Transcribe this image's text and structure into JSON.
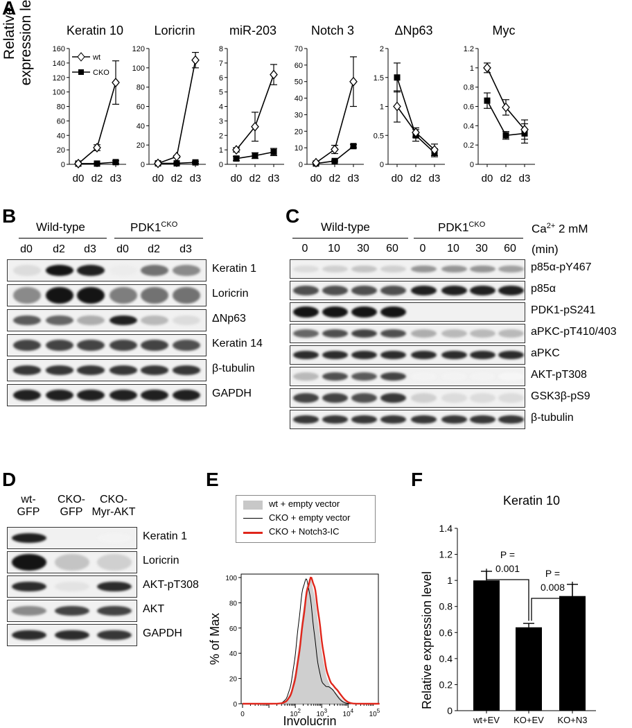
{
  "panels": {
    "A": {
      "letter": "A",
      "ylabel_line1": "Relative",
      "ylabel_line2": "expression level",
      "legend": {
        "wt": "wt",
        "cko": "CKO"
      },
      "charts": [
        {
          "title": "Keratin 10",
          "ylim": [
            0,
            160
          ],
          "yticks": [
            "0",
            "20",
            "40",
            "60",
            "80",
            "100",
            "120",
            "140",
            "160"
          ],
          "tickvals": [
            0,
            20,
            40,
            60,
            80,
            100,
            120,
            140,
            160
          ]
        },
        {
          "title": "Loricrin",
          "ylim": [
            0,
            120
          ],
          "yticks": [
            "0",
            "20",
            "40",
            "60",
            "80",
            "100",
            "120"
          ],
          "tickvals": [
            0,
            20,
            40,
            60,
            80,
            100,
            120
          ]
        },
        {
          "title": "miR-203",
          "ylim": [
            0,
            8
          ],
          "yticks": [
            "0",
            "1",
            "2",
            "3",
            "4",
            "5",
            "6",
            "7",
            "8"
          ],
          "tickvals": [
            0,
            1,
            2,
            3,
            4,
            5,
            6,
            7,
            8
          ]
        },
        {
          "title": "Notch 3",
          "ylim": [
            0,
            70
          ],
          "yticks": [
            "0",
            "10",
            "20",
            "30",
            "40",
            "50",
            "60",
            "70"
          ],
          "tickvals": [
            0,
            10,
            20,
            30,
            40,
            50,
            60,
            70
          ]
        },
        {
          "title": "ΔNp63",
          "ylim": [
            0,
            2
          ],
          "yticks": [
            "0",
            "0.5",
            "1",
            "1.5",
            "2"
          ],
          "tickvals": [
            0,
            0.5,
            1,
            1.5,
            2
          ]
        },
        {
          "title": "Myc",
          "ylim": [
            0,
            1.2
          ],
          "yticks": [
            "0",
            "0.2",
            "0.4",
            "0.6",
            "0.8",
            "1",
            "1.2"
          ],
          "tickvals": [
            0,
            0.2,
            0.4,
            0.6,
            0.8,
            1,
            1.2
          ]
        }
      ],
      "xticks": [
        "d0",
        "d2",
        "d3"
      ]
    },
    "B": {
      "letter": "B",
      "group1": "Wild-type",
      "group2_main": "PDK1",
      "group2_sup": "CKO",
      "lanes": [
        "d0",
        "d2",
        "d3",
        "d0",
        "d2",
        "d3"
      ],
      "rows": [
        "Keratin 1",
        "Loricrin",
        "ΔNp63",
        "Keratin 14",
        "β-tubulin",
        "GAPDH"
      ]
    },
    "C": {
      "letter": "C",
      "group1": "Wild-type",
      "group2_main": "PDK1",
      "group2_sup": "CKO",
      "ca_label": "Ca",
      "ca_sup": "2+",
      "ca_rest": " 2 mM",
      "unit": "(min)",
      "lanes": [
        "0",
        "10",
        "30",
        "60",
        "0",
        "10",
        "30",
        "60"
      ],
      "rows": [
        "p85α-pY467",
        "p85α",
        "PDK1-pS241",
        "aPKC-pT410/403",
        "aPKC",
        "AKT-pT308",
        "GSK3β-pS9",
        "β-tubulin"
      ]
    },
    "D": {
      "letter": "D",
      "lanes": [
        {
          "l1": "wt-",
          "l2": "GFP"
        },
        {
          "l1": "CKO-",
          "l2": "GFP"
        },
        {
          "l1": "CKO-",
          "l2": "Myr-AKT"
        }
      ],
      "rows": [
        "Keratin 1",
        "Loricrin",
        "AKT-pT308",
        "AKT",
        "GAPDH"
      ]
    },
    "E": {
      "letter": "E",
      "legend": [
        "wt + empty vector",
        "CKO + empty vector",
        "CKO + Notch3-IC"
      ],
      "ylabel": "% of Max",
      "xlabel": "Involucrin",
      "yticks": [
        "0",
        "20",
        "40",
        "60",
        "80",
        "100"
      ],
      "xticks": [
        {
          "b": "0",
          "e": ""
        },
        {
          "b": "10",
          "e": "2"
        },
        {
          "b": "10",
          "e": "3"
        },
        {
          "b": "10",
          "e": "4"
        },
        {
          "b": "10",
          "e": "5"
        }
      ]
    },
    "F": {
      "letter": "F",
      "title": "Keratin 10",
      "ylabel": "Relative expression level",
      "p1_line1": "P =",
      "p1_line2": "0.001",
      "p2_line1": "P =",
      "p2_line2": "0.008",
      "yticks": [
        "0",
        "0.2",
        "0.4",
        "0.6",
        "0.8",
        "1",
        "1.2",
        "1.4"
      ]
    }
  },
  "chart_data": [
    {
      "type": "line",
      "title": "Keratin 10",
      "x": [
        "d0",
        "d2",
        "d3"
      ],
      "series": [
        {
          "name": "wt",
          "values": [
            1,
            23,
            113
          ],
          "errors": [
            1,
            4,
            30
          ]
        },
        {
          "name": "CKO",
          "values": [
            1,
            1,
            3
          ],
          "errors": [
            0.5,
            0.5,
            2
          ]
        }
      ],
      "ylim": [
        0,
        160
      ]
    },
    {
      "type": "line",
      "title": "Loricrin",
      "x": [
        "d0",
        "d2",
        "d3"
      ],
      "series": [
        {
          "name": "wt",
          "values": [
            1,
            8,
            108
          ],
          "errors": [
            0.5,
            1,
            8
          ]
        },
        {
          "name": "CKO",
          "values": [
            1,
            1,
            2
          ],
          "errors": [
            0.5,
            0.5,
            1
          ]
        }
      ],
      "ylim": [
        0,
        120
      ]
    },
    {
      "type": "line",
      "title": "miR-203",
      "x": [
        "d0",
        "d2",
        "d3"
      ],
      "series": [
        {
          "name": "wt",
          "values": [
            1,
            2.6,
            6.2
          ],
          "errors": [
            0.15,
            1,
            0.7
          ]
        },
        {
          "name": "CKO",
          "values": [
            0.4,
            0.6,
            0.85
          ],
          "errors": [
            0.15,
            0.2,
            0.25
          ]
        }
      ],
      "ylim": [
        0,
        8
      ]
    },
    {
      "type": "line",
      "title": "Notch 3",
      "x": [
        "d0",
        "d2",
        "d3"
      ],
      "series": [
        {
          "name": "wt",
          "values": [
            1,
            9,
            50
          ],
          "errors": [
            0.5,
            2.5,
            15
          ]
        },
        {
          "name": "CKO",
          "values": [
            0.5,
            2,
            11
          ],
          "errors": [
            0.5,
            0.5,
            1
          ]
        }
      ],
      "ylim": [
        0,
        70
      ]
    },
    {
      "type": "line",
      "title": "ΔNp63",
      "x": [
        "d0",
        "d2",
        "d3"
      ],
      "series": [
        {
          "name": "wt",
          "values": [
            1,
            0.55,
            0.25
          ],
          "errors": [
            0.27,
            0.08,
            0.1
          ]
        },
        {
          "name": "CKO",
          "values": [
            1.5,
            0.5,
            0.2
          ],
          "errors": [
            0.25,
            0.1,
            0.07
          ]
        }
      ],
      "ylim": [
        0,
        2
      ]
    },
    {
      "type": "line",
      "title": "Myc",
      "x": [
        "d0",
        "d2",
        "d3"
      ],
      "series": [
        {
          "name": "wt",
          "values": [
            1,
            0.59,
            0.36
          ],
          "errors": [
            0.05,
            0.08,
            0.1
          ]
        },
        {
          "name": "CKO",
          "values": [
            0.66,
            0.3,
            0.32
          ],
          "errors": [
            0.08,
            0.04,
            0.1
          ]
        }
      ],
      "ylim": [
        0,
        1.2
      ]
    },
    {
      "type": "bar",
      "title": "Keratin 10",
      "categories": [
        "wt+EV",
        "KO+EV",
        "KO+N3"
      ],
      "values": [
        1.0,
        0.64,
        0.88
      ],
      "errors": [
        0.07,
        0.03,
        0.09
      ],
      "ylabel": "Relative expression level",
      "ylim": [
        0,
        1.4
      ]
    }
  ]
}
